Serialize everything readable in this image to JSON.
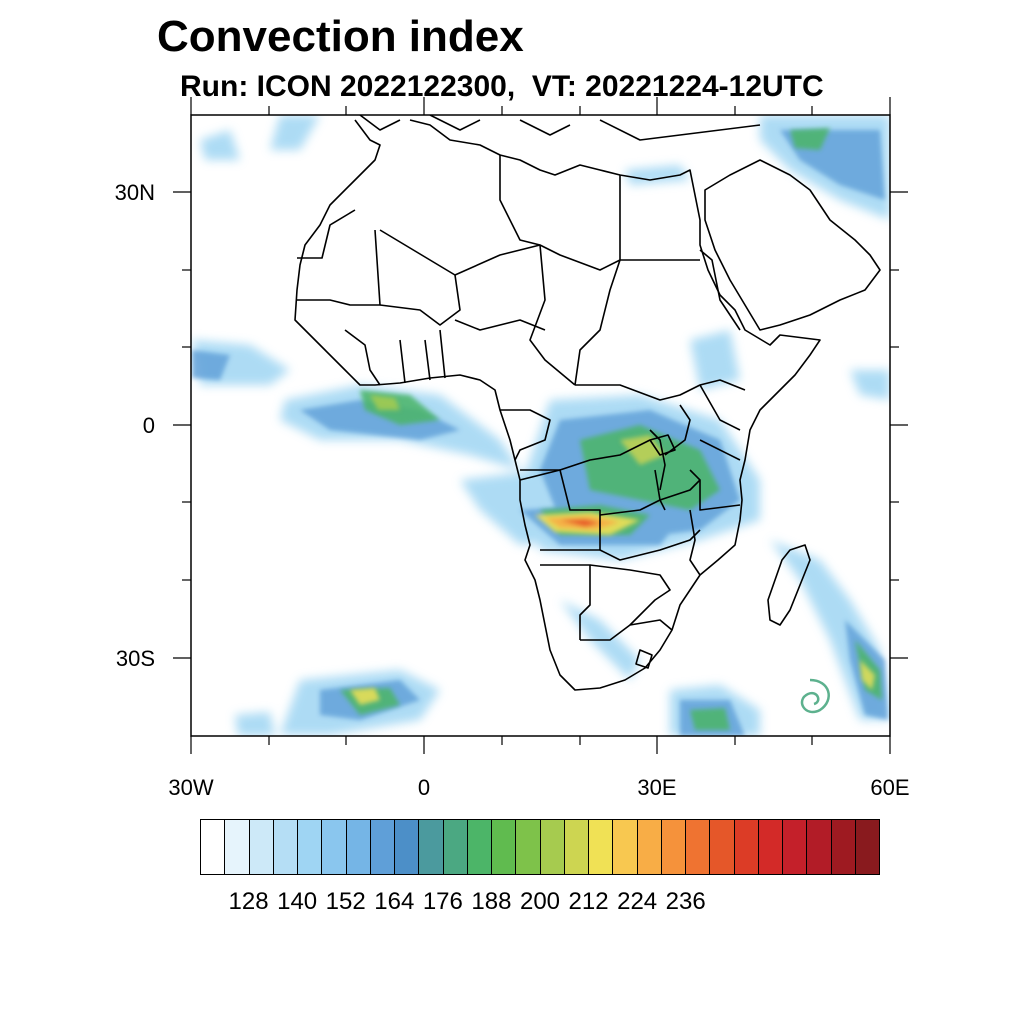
{
  "title": "Convection index",
  "subtitle": "Run: ICON 2022122300,  VT: 20221224-12UTC",
  "lat_labels": [
    "30N",
    "0",
    "30S"
  ],
  "lon_labels": [
    "30W",
    "0",
    "30E",
    "60E"
  ],
  "colorbar": {
    "colors": [
      "#ffffff",
      "#e6f4fc",
      "#cde9f8",
      "#b5def5",
      "#9fd5f3",
      "#8ac6ee",
      "#75b5e6",
      "#5f9fd8",
      "#4c8fc8",
      "#4b9a9e",
      "#4ba882",
      "#4cb568",
      "#60bb4f",
      "#7ec24a",
      "#a6cb4f",
      "#cdd551",
      "#f0e155",
      "#f8c850",
      "#f8ad46",
      "#f5923b",
      "#ef7331",
      "#e55729",
      "#dc3c26",
      "#d32a28",
      "#c4202a",
      "#b21c27",
      "#9e1a21",
      "#891a1e"
    ],
    "labels": [
      "128",
      "140",
      "152",
      "164",
      "176",
      "188",
      "200",
      "212",
      "224",
      "236"
    ]
  },
  "map": {
    "land_color": "#ffffff",
    "ocean_color": "#ffffff",
    "border_color": "#000000"
  }
}
